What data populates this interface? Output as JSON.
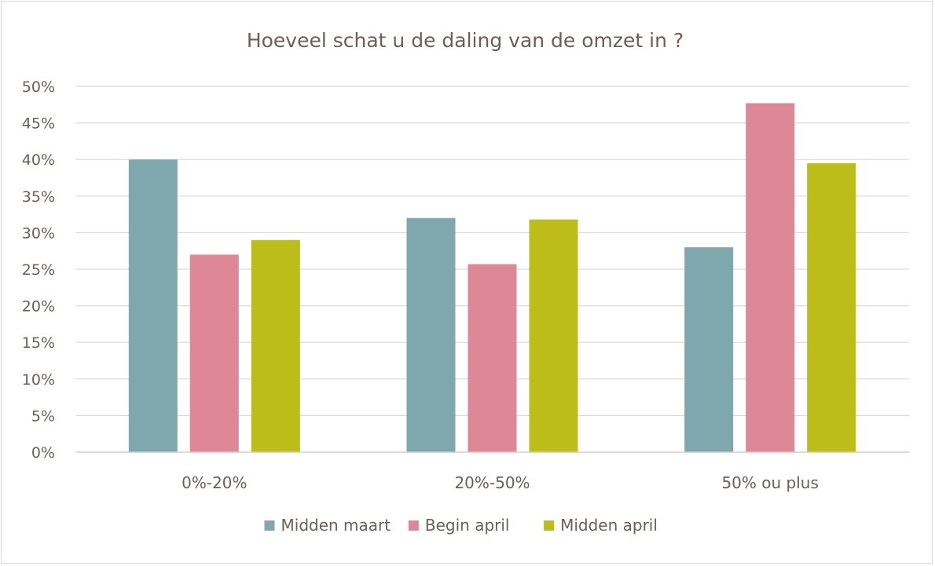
{
  "chart_data": {
    "type": "bar",
    "title": "Hoeveel schat u de daling van de omzet in ?",
    "xlabel": "",
    "ylabel": "",
    "categories": [
      "0%-20%",
      "20%-50%",
      "50% ou plus"
    ],
    "series": [
      {
        "name": "Midden maart",
        "color": "#7fa7ae",
        "values": [
          0.4,
          0.32,
          0.28
        ]
      },
      {
        "name": "Begin april",
        "color": "#de8796",
        "values": [
          0.27,
          0.257,
          0.477
        ]
      },
      {
        "name": "Midden april",
        "color": "#bdbd19",
        "values": [
          0.29,
          0.318,
          0.395
        ]
      }
    ],
    "ylim": [
      0,
      0.5
    ],
    "y_ticks": [
      "0%",
      "5%",
      "10%",
      "15%",
      "20%",
      "25%",
      "30%",
      "35%",
      "40%",
      "45%",
      "50%"
    ],
    "grid": true,
    "legend_position": "bottom"
  }
}
